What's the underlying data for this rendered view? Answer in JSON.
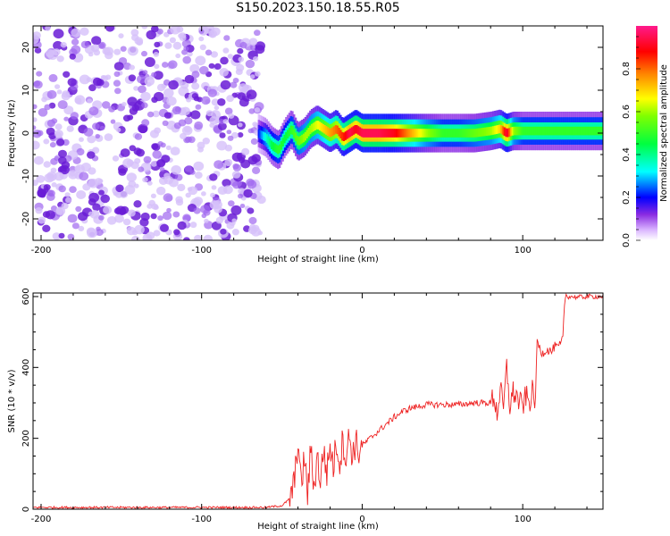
{
  "title": "S150.2023.150.18.55.R05",
  "chart_data": [
    {
      "type": "heatmap",
      "xlabel": "Height of straight line (km)",
      "ylabel": "Frequency (Hz)",
      "xlim": [
        -205,
        150
      ],
      "ylim": [
        -25,
        25
      ],
      "xticks": [
        -200,
        -100,
        0,
        100
      ],
      "yticks": [
        -20,
        -10,
        0,
        10,
        20
      ],
      "grid": false,
      "colorbar": {
        "label": "Normalized spectral amplitude",
        "range": [
          0,
          1
        ],
        "ticks": [
          0.0,
          0.2,
          0.4,
          0.6,
          0.8
        ],
        "tick_labels": [
          "0.0",
          "0.2",
          "0.4",
          "0.6",
          "0.8"
        ],
        "colors": [
          "#ffffff",
          "#8a2be2",
          "#0000ff",
          "#00ffff",
          "#00ff00",
          "#ffff00",
          "#ff0000",
          "#ff0080"
        ]
      },
      "ridge": {
        "x": [
          -65,
          -60,
          -56,
          -52,
          -48,
          -44,
          -40,
          -36,
          -32,
          -28,
          -24,
          -20,
          -16,
          -12,
          -8,
          -4,
          0,
          10,
          20,
          30,
          40,
          50,
          60,
          70,
          80,
          86,
          90,
          94,
          100,
          110,
          120,
          130,
          140,
          150
        ],
        "frequency": [
          0,
          -1,
          -3,
          -4,
          -1,
          1,
          -2,
          -1,
          1,
          2,
          1,
          0,
          1,
          -1,
          0,
          1,
          0,
          0,
          0,
          0,
          0,
          0,
          0,
          0,
          0.5,
          1,
          0,
          0.5,
          0.5,
          0.5,
          0.5,
          0.5,
          0.5,
          0.5
        ],
        "amplitude": [
          0.2,
          0.35,
          0.45,
          0.5,
          0.45,
          0.5,
          0.55,
          0.6,
          0.6,
          0.65,
          0.7,
          0.75,
          0.8,
          0.85,
          0.95,
          0.9,
          0.95,
          0.95,
          0.9,
          0.75,
          0.6,
          0.5,
          0.5,
          0.55,
          0.6,
          0.7,
          0.95,
          0.6,
          0.5,
          0.5,
          0.5,
          0.5,
          0.5,
          0.5
        ]
      },
      "noise_region": {
        "x": [
          -205,
          -62
        ],
        "amplitude_range": [
          0.05,
          0.25
        ]
      }
    },
    {
      "type": "line",
      "xlabel": "Height of straight line (km)",
      "ylabel": "SNR (10 * v/v)",
      "xlim": [
        -205,
        150
      ],
      "ylim": [
        0,
        610
      ],
      "xticks": [
        -200,
        -100,
        0,
        100
      ],
      "yticks": [
        0,
        200,
        400,
        600
      ],
      "grid": false,
      "series": [
        {
          "color": "#ee2222",
          "x": [
            -205,
            -150,
            -100,
            -60,
            -50,
            -45,
            -42,
            -40,
            -38,
            -36,
            -34,
            -32,
            -30,
            -28,
            -26,
            -24,
            -22,
            -20,
            -18,
            -16,
            -14,
            -12,
            -10,
            -8,
            -6,
            -4,
            -2,
            0,
            5,
            10,
            15,
            20,
            25,
            30,
            40,
            50,
            60,
            70,
            80,
            82,
            84,
            86,
            88,
            90,
            92,
            94,
            96,
            98,
            100,
            102,
            104,
            106,
            108,
            109,
            110,
            112,
            115,
            118,
            120,
            122,
            124,
            125,
            126,
            127,
            128,
            130,
            135,
            140,
            145,
            150
          ],
          "y": [
            5,
            5,
            5,
            5,
            10,
            30,
            80,
            200,
            60,
            150,
            40,
            170,
            60,
            150,
            80,
            170,
            100,
            180,
            120,
            190,
            130,
            200,
            140,
            210,
            150,
            190,
            160,
            180,
            200,
            220,
            240,
            260,
            275,
            285,
            295,
            295,
            295,
            300,
            300,
            320,
            270,
            340,
            280,
            400,
            290,
            330,
            320,
            300,
            290,
            320,
            300,
            330,
            310,
            480,
            460,
            440,
            450,
            445,
            460,
            455,
            470,
            480,
            580,
            605,
            600,
            600,
            598,
            600,
            600,
            600
          ]
        }
      ]
    }
  ]
}
